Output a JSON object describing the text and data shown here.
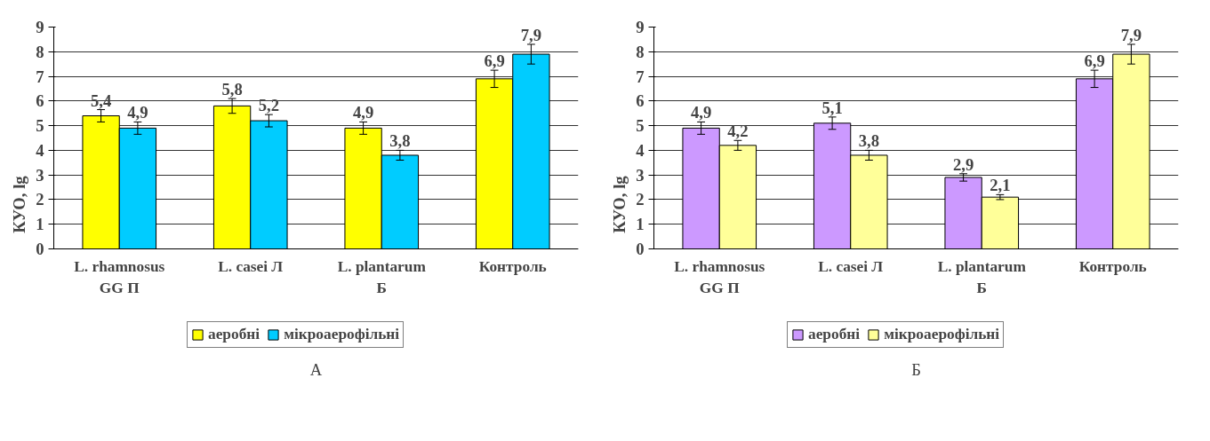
{
  "chart_data": [
    {
      "type": "bar",
      "categories": [
        "L. rhamnosus\nGG П",
        "L. casei Л",
        "L. plantarum\nБ",
        "Контроль"
      ],
      "ylabel": "КУО, lg",
      "ylim": [
        0,
        9
      ],
      "yticks": [
        0,
        1,
        2,
        3,
        4,
        5,
        6,
        7,
        8,
        9
      ],
      "grid": "y",
      "legend": "bottom",
      "annotations": [
        "А"
      ],
      "series": [
        {
          "name": "аеробні",
          "color": "#ffff00",
          "values": [
            5.4,
            5.8,
            4.9,
            6.9
          ],
          "errors": [
            0.25,
            0.3,
            0.25,
            0.35
          ],
          "value_labels": [
            "5,4",
            "5,8",
            "4,9",
            "6,9"
          ]
        },
        {
          "name": "мікроаерофільні",
          "color": "#00ccff",
          "values": [
            4.9,
            5.2,
            3.8,
            7.9
          ],
          "errors": [
            0.25,
            0.25,
            0.2,
            0.4
          ],
          "value_labels": [
            "4,9",
            "5,2",
            "3,8",
            "7,9"
          ]
        }
      ]
    },
    {
      "type": "bar",
      "categories": [
        "L. rhamnosus\nGG П",
        "L. casei Л",
        "L. plantarum\nБ",
        "Контроль"
      ],
      "ylabel": "КУО, lg",
      "ylim": [
        0,
        9
      ],
      "yticks": [
        0,
        1,
        2,
        3,
        4,
        5,
        6,
        7,
        8,
        9
      ],
      "grid": "y",
      "legend": "bottom",
      "annotations": [
        "Б"
      ],
      "series": [
        {
          "name": "аеробні",
          "color": "#cc99ff",
          "values": [
            4.9,
            5.1,
            2.9,
            6.9
          ],
          "errors": [
            0.25,
            0.25,
            0.15,
            0.35
          ],
          "value_labels": [
            "4,9",
            "5,1",
            "2,9",
            "6,9"
          ]
        },
        {
          "name": "мікроаерофільні",
          "color": "#ffff99",
          "values": [
            4.2,
            3.8,
            2.1,
            7.9
          ],
          "errors": [
            0.2,
            0.2,
            0.1,
            0.4
          ],
          "value_labels": [
            "4,2",
            "3,8",
            "2,1",
            "7,9"
          ]
        }
      ]
    }
  ]
}
